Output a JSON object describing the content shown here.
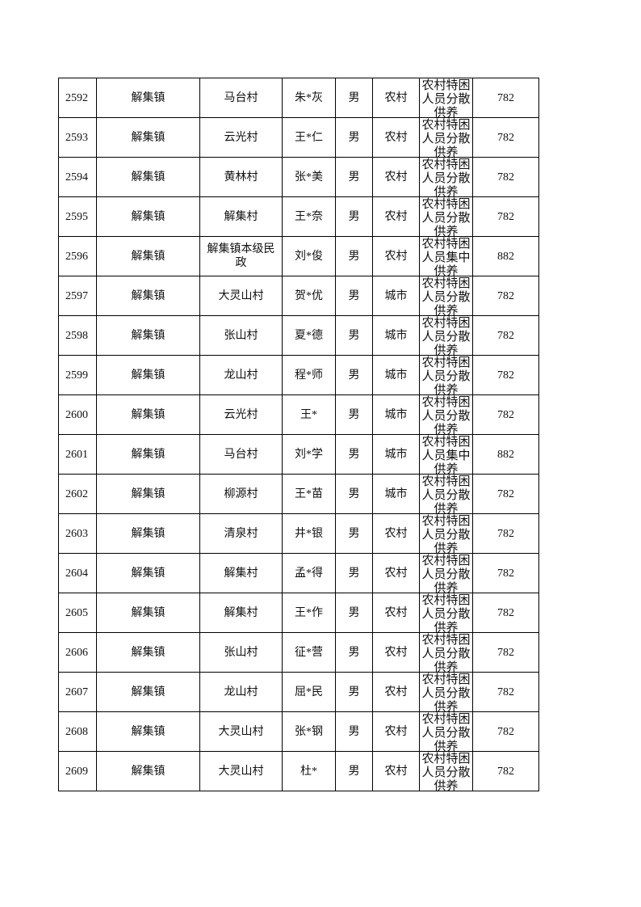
{
  "table": {
    "rows": [
      [
        2592,
        "解集镇",
        "马台村",
        "朱*灰",
        "男",
        "农村",
        "农村特困人员分散供养",
        782
      ],
      [
        2593,
        "解集镇",
        "云光村",
        "王*仁",
        "男",
        "农村",
        "农村特困人员分散供养",
        782
      ],
      [
        2594,
        "解集镇",
        "黄林村",
        "张*美",
        "男",
        "农村",
        "农村特困人员分散供养",
        782
      ],
      [
        2595,
        "解集镇",
        "解集村",
        "王*奈",
        "男",
        "农村",
        "农村特困人员分散供养",
        782
      ],
      [
        2596,
        "解集镇",
        "解集镇本级民政",
        "刘*俊",
        "男",
        "农村",
        "农村特困人员集中供养",
        882
      ],
      [
        2597,
        "解集镇",
        "大灵山村",
        "贺*优",
        "男",
        "城市",
        "农村特困人员分散供养",
        782
      ],
      [
        2598,
        "解集镇",
        "张山村",
        "夏*德",
        "男",
        "城市",
        "农村特困人员分散供养",
        782
      ],
      [
        2599,
        "解集镇",
        "龙山村",
        "程*师",
        "男",
        "城市",
        "农村特困人员分散供养",
        782
      ],
      [
        2600,
        "解集镇",
        "云光村",
        "王*",
        "男",
        "城市",
        "农村特困人员分散供养",
        782
      ],
      [
        2601,
        "解集镇",
        "马台村",
        "刘*学",
        "男",
        "城市",
        "农村特困人员集中供养",
        882
      ],
      [
        2602,
        "解集镇",
        "柳源村",
        "王*苗",
        "男",
        "城市",
        "农村特困人员分散供养",
        782
      ],
      [
        2603,
        "解集镇",
        "清泉村",
        "井*银",
        "男",
        "农村",
        "农村特困人员分散供养",
        782
      ],
      [
        2604,
        "解集镇",
        "解集村",
        "孟*得",
        "男",
        "农村",
        "农村特困人员分散供养",
        782
      ],
      [
        2605,
        "解集镇",
        "解集村",
        "王*作",
        "男",
        "农村",
        "农村特困人员分散供养",
        782
      ],
      [
        2606,
        "解集镇",
        "张山村",
        "征*营",
        "男",
        "农村",
        "农村特困人员分散供养",
        782
      ],
      [
        2607,
        "解集镇",
        "龙山村",
        "屈*民",
        "男",
        "农村",
        "农村特困人员分散供养",
        782
      ],
      [
        2608,
        "解集镇",
        "大灵山村",
        "张*钢",
        "男",
        "农村",
        "农村特困人员分散供养",
        782
      ],
      [
        2609,
        "解集镇",
        "大灵山村",
        "杜*",
        "男",
        "农村",
        "农村特困人员分散供养",
        782
      ]
    ]
  }
}
